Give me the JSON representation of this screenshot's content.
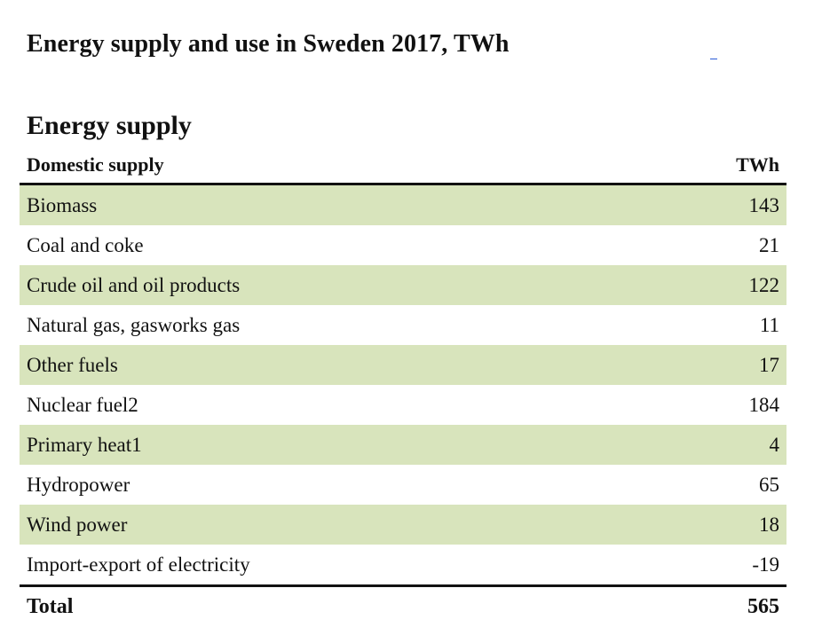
{
  "title": "Energy supply and use in Sweden 2017, TWh",
  "section_title": "Energy supply",
  "table": {
    "header": {
      "label": "Domestic supply",
      "unit": "TWh"
    },
    "rows": [
      {
        "label": "Biomass",
        "value": "143"
      },
      {
        "label": "Coal and coke",
        "value": "21"
      },
      {
        "label": "Crude oil and oil products",
        "value": "122"
      },
      {
        "label": "Natural gas, gasworks gas",
        "value": "11"
      },
      {
        "label": "Other fuels",
        "value": "17"
      },
      {
        "label": "Nuclear fuel2",
        "value": "184"
      },
      {
        "label": "Primary heat1",
        "value": "4"
      },
      {
        "label": "Hydropower",
        "value": "65"
      },
      {
        "label": "Wind power",
        "value": "18"
      },
      {
        "label": "Import-export of electricity",
        "value": "-19"
      }
    ],
    "total": {
      "label": "Total",
      "value": "565"
    }
  },
  "colors": {
    "row_shade": "#d8e4bc",
    "rule": "#111111",
    "link": "#2a5bd7"
  }
}
